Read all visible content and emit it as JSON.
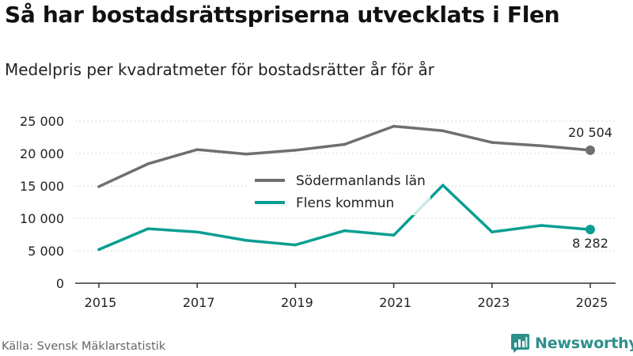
{
  "header": {
    "title": "Så har bostadsrättspriserna utvecklats i Flen",
    "subtitle": "Medelpris per kvadratmeter för bostadsrätter år för år"
  },
  "footer": {
    "source": "Källa: Svensk Mäklarstatistik",
    "brand": "Newsworthy"
  },
  "colors": {
    "sodermanland": "#6e6e73",
    "flen": "#0a9e92",
    "axis": "#333333",
    "grid": "#d9d9d9",
    "brand": "#2e8f8b"
  },
  "chart_data": {
    "type": "line",
    "title": "Så har bostadsrättspriserna utvecklats i Flen",
    "subtitle": "Medelpris per kvadratmeter för bostadsrätter år för år",
    "xlabel": "",
    "ylabel": "",
    "x": [
      2015,
      2016,
      2017,
      2018,
      2019,
      2020,
      2021,
      2022,
      2023,
      2024,
      2025
    ],
    "xticks": [
      2015,
      2017,
      2019,
      2021,
      2023,
      2025
    ],
    "xlim": [
      2015,
      2025
    ],
    "ylim": [
      0,
      25000
    ],
    "yticks": [
      0,
      5000,
      10000,
      15000,
      20000,
      25000
    ],
    "ytick_labels": [
      "0",
      "5 000",
      "10 000",
      "15 000",
      "20 000",
      "25 000"
    ],
    "grid": true,
    "legend_position": "center",
    "series": [
      {
        "name": "Södermanlands län",
        "color_key": "sodermanland",
        "values": [
          14900,
          18400,
          20600,
          19900,
          20500,
          21400,
          24200,
          23500,
          21700,
          21200,
          20504
        ],
        "end_label": "20 504"
      },
      {
        "name": "Flens kommun",
        "color_key": "flen",
        "values": [
          5200,
          8400,
          7900,
          6600,
          5900,
          8100,
          7400,
          15100,
          7900,
          8900,
          8282
        ],
        "end_label": "8 282"
      }
    ]
  }
}
